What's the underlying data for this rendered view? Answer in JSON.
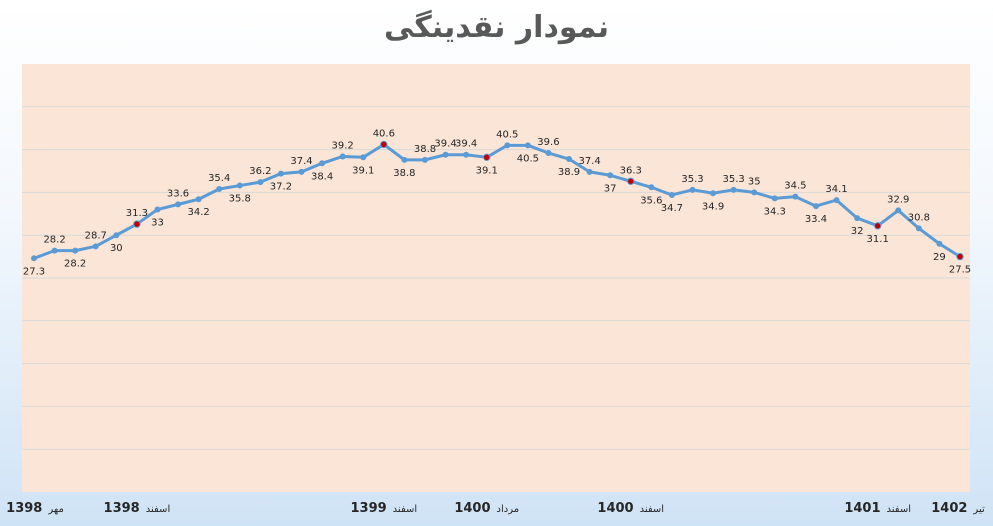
{
  "chart_data": {
    "type": "line",
    "title": "نمودار نقدینگی",
    "ylim": [
      0,
      50
    ],
    "grid": true,
    "legend": "none",
    "colors": {
      "plot_background": "#fbe5d6",
      "line": "#5b9bd5",
      "marker": "#5b9bd5",
      "highlight_marker": "#c00000",
      "gridline": "#d9d9d9"
    },
    "series": [
      {
        "values": [
          27.3,
          28.2,
          28.2,
          28.7,
          30,
          31.3,
          33,
          33.6,
          34.2,
          35.4,
          35.8,
          36.2,
          37.2,
          37.4,
          38.4,
          39.2,
          39.1,
          40.6,
          38.8,
          38.8,
          39.4,
          39.4,
          39.1,
          40.5,
          40.5,
          39.6,
          38.9,
          37.4,
          37,
          36.3,
          35.6,
          34.7,
          35.3,
          34.9,
          35.3,
          35,
          34.3,
          34.5,
          33.4,
          34.1,
          32,
          31.1,
          32.9,
          30.8,
          29,
          27.5
        ],
        "highlighted_points": [
          5,
          17,
          22,
          29,
          41,
          45
        ]
      }
    ],
    "x_labels": [
      {
        "index": 0,
        "year": "1398",
        "month": "مهر"
      },
      {
        "index": 5,
        "year": "1398",
        "month": "اسفند"
      },
      {
        "index": 17,
        "year": "1399",
        "month": "اسفند"
      },
      {
        "index": 22,
        "year": "1400",
        "month": "مرداد"
      },
      {
        "index": 29,
        "year": "1400",
        "month": "اسفند"
      },
      {
        "index": 41,
        "year": "1401",
        "month": "اسفند"
      },
      {
        "index": 45,
        "year": "1402",
        "month": "تیر"
      }
    ]
  }
}
